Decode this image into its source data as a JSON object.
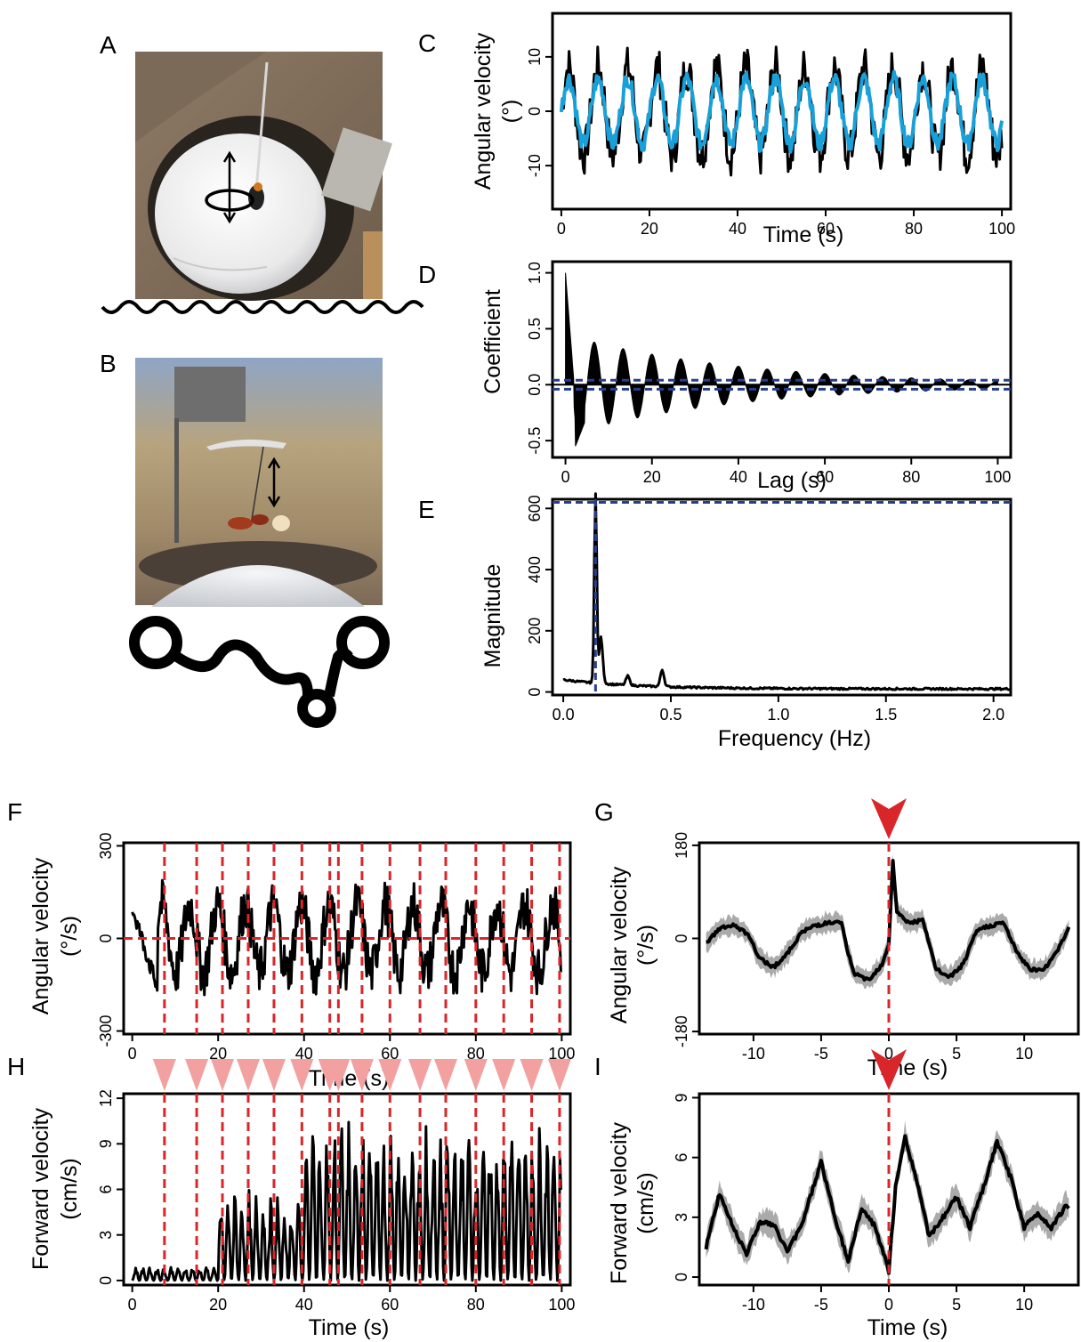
{
  "panels": {
    "A": "A",
    "B": "B",
    "C": "C",
    "D": "D",
    "E": "E",
    "F": "F",
    "G": "G",
    "H": "H",
    "I": "I"
  },
  "colors": {
    "trace": "#000000",
    "smoothed": "#1aa0d8",
    "ci": "#27408b",
    "event": "#d9262b",
    "event_arrow": "#f2a0a0",
    "shade": "#aaaaaa"
  },
  "chart_data": [
    {
      "id": "C",
      "type": "line",
      "xlabel": "Time (s)",
      "ylabel_lines": [
        "Angular velocity",
        "(°)"
      ],
      "xlim": [
        -2,
        102
      ],
      "ylim": [
        -18,
        18
      ],
      "xticks": [
        0,
        20,
        40,
        60,
        80,
        100
      ],
      "yticks": [
        -10,
        0,
        10
      ],
      "series": [
        {
          "color": "trace",
          "period": 6.7,
          "amplitude": 8,
          "noise": 4
        },
        {
          "color": "smoothed",
          "period": 6.7,
          "amplitude": 6,
          "noise": 1.5
        }
      ]
    },
    {
      "id": "D",
      "type": "area",
      "xlabel": "Lag (s)",
      "ylabel_lines": [
        "Coefficient"
      ],
      "xlim": [
        -3,
        103
      ],
      "ylim": [
        -0.65,
        1.1
      ],
      "xticks": [
        0,
        20,
        40,
        60,
        80,
        100
      ],
      "yticks": [
        -0.5,
        0.0,
        0.5,
        1.0
      ],
      "ytick_labels": [
        "-0.5",
        "0.0",
        "0.5",
        "1.0"
      ],
      "period": 6.67,
      "ci": [
        0.04,
        -0.04
      ]
    },
    {
      "id": "E",
      "type": "line",
      "xlabel": "Frequency (Hz)",
      "ylabel_lines": [
        "Magnitude"
      ],
      "xlim": [
        -0.05,
        2.08
      ],
      "ylim": [
        -10,
        630
      ],
      "xticks": [
        0.0,
        0.5,
        1.0,
        1.5,
        2.0
      ],
      "yticks": [
        0,
        200,
        400,
        600
      ],
      "xtick_labels": [
        "0.0",
        "0.5",
        "1.0",
        "1.5",
        "2.0"
      ],
      "peak_frequency": 0.15,
      "peak_magnitude": 620,
      "secondary_peaks": [
        [
          0.3,
          30
        ],
        [
          0.46,
          55
        ]
      ]
    },
    {
      "id": "F",
      "type": "line",
      "xlabel": "Time (s)",
      "ylabel_lines": [
        "Angular velocity",
        "(°/s)"
      ],
      "xlim": [
        -2,
        102
      ],
      "ylim": [
        -310,
        310
      ],
      "xticks": [
        0,
        20,
        40,
        60,
        80,
        100
      ],
      "yticks": [
        -300,
        0,
        300
      ],
      "events": [
        7.5,
        15,
        21,
        27,
        33,
        39.5,
        46,
        48,
        53.5,
        60,
        67,
        73,
        80,
        86.5,
        93,
        99.5
      ]
    },
    {
      "id": "G",
      "type": "line",
      "xlabel": "Time (s)",
      "ylabel_lines": [
        "Angular velocity",
        "(°/s)"
      ],
      "xlim": [
        -14,
        14
      ],
      "ylim": [
        -185,
        185
      ],
      "xticks": [
        -10,
        -5,
        0,
        5,
        10
      ],
      "yticks": [
        -180,
        0,
        180
      ],
      "event_time": 0,
      "mean_trace": [
        [
          -13.5,
          -10
        ],
        [
          -12.5,
          20
        ],
        [
          -11.5,
          25
        ],
        [
          -10.5,
          10
        ],
        [
          -9.5,
          -40
        ],
        [
          -8.5,
          -55
        ],
        [
          -7.5,
          -30
        ],
        [
          -6.5,
          10
        ],
        [
          -5.5,
          25
        ],
        [
          -4.5,
          30
        ],
        [
          -3.5,
          30
        ],
        [
          -3,
          -30
        ],
        [
          -2.5,
          -70
        ],
        [
          -1.5,
          -80
        ],
        [
          -0.5,
          -50
        ],
        [
          0,
          -10
        ],
        [
          0.3,
          150
        ],
        [
          0.6,
          50
        ],
        [
          1.5,
          30
        ],
        [
          2.5,
          35
        ],
        [
          3.5,
          -60
        ],
        [
          4.5,
          -75
        ],
        [
          5.5,
          -50
        ],
        [
          6.5,
          15
        ],
        [
          7.5,
          25
        ],
        [
          8.5,
          30
        ],
        [
          9.5,
          -30
        ],
        [
          10.5,
          -60
        ],
        [
          11.5,
          -60
        ],
        [
          12.5,
          -20
        ],
        [
          13.3,
          20
        ]
      ]
    },
    {
      "id": "H",
      "type": "line",
      "xlabel": "Time (s)",
      "ylabel_lines": [
        "Forward velocity",
        "(cm/s)"
      ],
      "xlim": [
        -2,
        102
      ],
      "ylim": [
        -0.3,
        12.3
      ],
      "xticks": [
        0,
        20,
        40,
        60,
        80,
        100
      ],
      "yticks": [
        0,
        3,
        6,
        9,
        12
      ]
    },
    {
      "id": "I",
      "type": "line",
      "xlabel": "Time (s)",
      "ylabel_lines": [
        "Forward velocity",
        "(cm/s)"
      ],
      "xlim": [
        -14,
        14
      ],
      "ylim": [
        -0.4,
        9.2
      ],
      "xticks": [
        -10,
        -5,
        0,
        5,
        10
      ],
      "yticks": [
        0,
        3,
        6,
        9
      ],
      "event_time": 0,
      "mean_trace": [
        [
          -13.5,
          1.5
        ],
        [
          -12.5,
          4.2
        ],
        [
          -11.5,
          2.5
        ],
        [
          -10.5,
          1.2
        ],
        [
          -9.5,
          2.8
        ],
        [
          -8.5,
          2.6
        ],
        [
          -7.5,
          1.3
        ],
        [
          -6.5,
          2.5
        ],
        [
          -5,
          5.8
        ],
        [
          -4,
          3.0
        ],
        [
          -3,
          0.8
        ],
        [
          -2,
          3.5
        ],
        [
          -1,
          2.5
        ],
        [
          0,
          0.3
        ],
        [
          0.5,
          4.5
        ],
        [
          1.2,
          7.0
        ],
        [
          2,
          5.0
        ],
        [
          3,
          2.0
        ],
        [
          4,
          3.0
        ],
        [
          5,
          4.0
        ],
        [
          6,
          2.5
        ],
        [
          7,
          4.5
        ],
        [
          8,
          6.8
        ],
        [
          9,
          5.0
        ],
        [
          10,
          2.5
        ],
        [
          11,
          3.2
        ],
        [
          12,
          2.5
        ],
        [
          13,
          3.5
        ]
      ]
    }
  ]
}
